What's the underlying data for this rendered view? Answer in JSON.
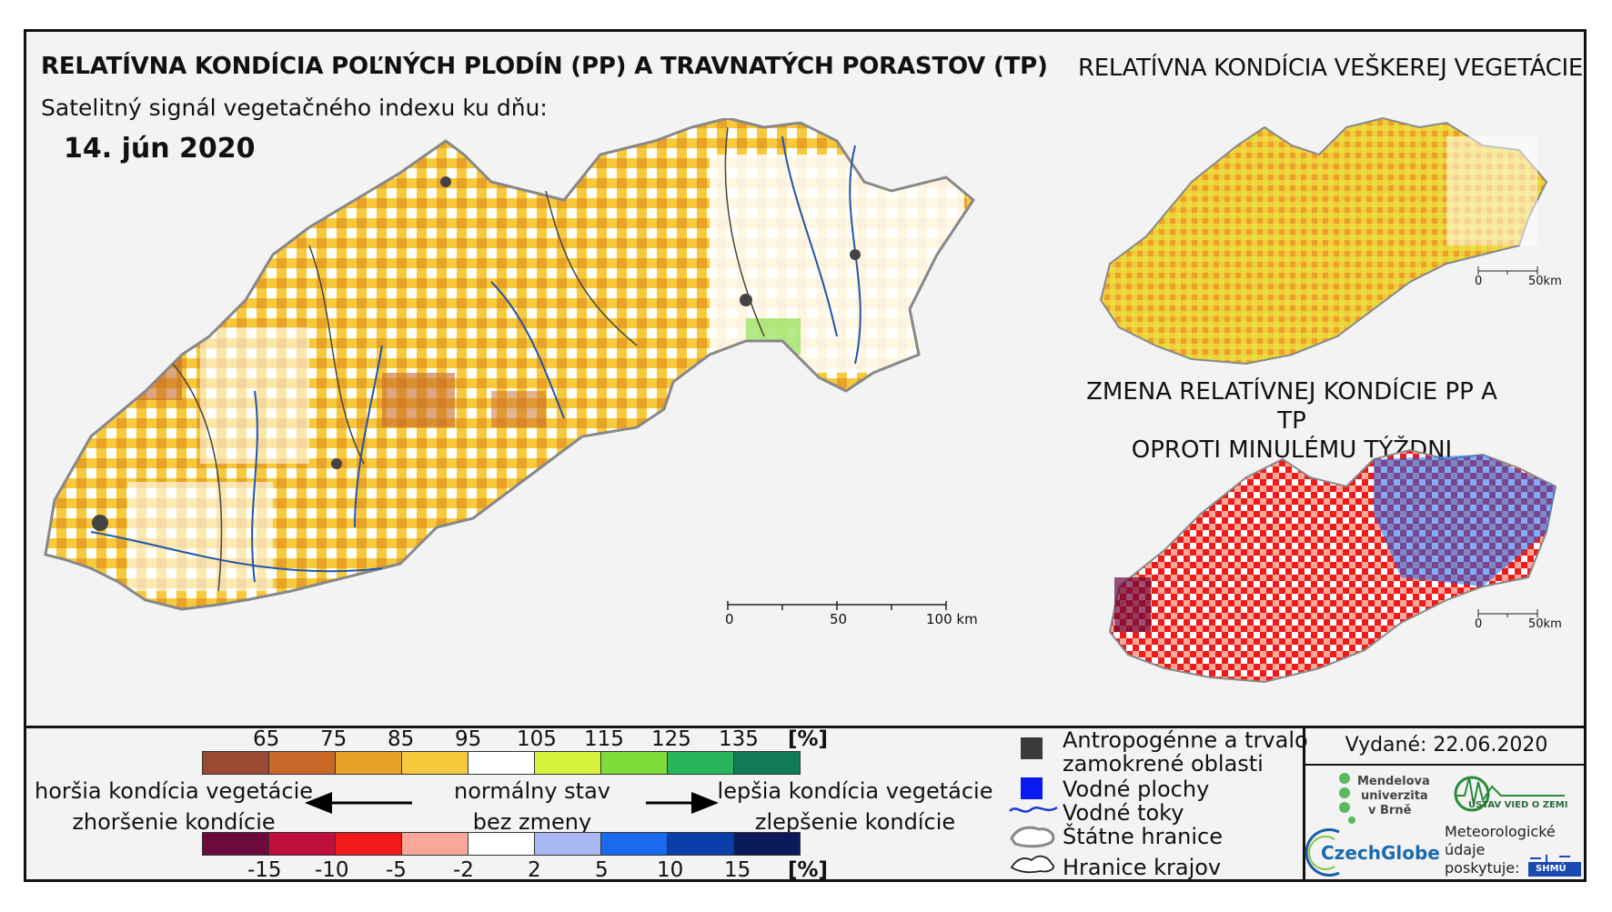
{
  "titles": {
    "main": "RELATÍVNA KONDÍCIA POĽNÝCH PLODÍN (PP) A TRAVNATÝCH PORASTOV (TP)",
    "subtitle": "Satelitný signál vegetačného indexu ku dňu:",
    "date": "14. jún 2020",
    "right_top": "RELATÍVNA KONDÍCIA VEŠKEREJ VEGETÁCIE",
    "right_change_line1": "ZMENA RELATÍVNEJ KONDÍCIE PP A TP",
    "right_change_line2": "OPROTI MINULÉMU TÝŽDNI"
  },
  "scale_bars": {
    "main": {
      "labels": [
        "0",
        "50",
        "100 km"
      ]
    },
    "small_top": {
      "labels": [
        "0",
        "50km"
      ]
    },
    "small_bottom": {
      "labels": [
        "0",
        "50km"
      ]
    }
  },
  "legend": {
    "condition_ticks": [
      "65",
      "75",
      "85",
      "95",
      "105",
      "115",
      "125",
      "135"
    ],
    "condition_unit": "[%]",
    "condition_colors": [
      "#9a4a33",
      "#c8692a",
      "#e8a228",
      "#f6ca3c",
      "#ffffff",
      "#d6f23c",
      "#7fdc3a",
      "#27b55a",
      "#117a56"
    ],
    "change_ticks": [
      "-15",
      "-10",
      "-5",
      "-2",
      "2",
      "5",
      "10",
      "15"
    ],
    "change_unit": "[%]",
    "change_colors": [
      "#6c0a3c",
      "#c00f3c",
      "#f01a1a",
      "#f8a898",
      "#ffffff",
      "#a8b8f2",
      "#1a6af0",
      "#0a3ea8",
      "#0a1a5a"
    ],
    "worse_line1": "horšia kondícia vegetácie",
    "worse_line2": "zhoršenie kondície",
    "normal_line1": "normálny stav",
    "normal_line2": "bez zmeny",
    "better_line1": "lepšia kondícia vegetácie",
    "better_line2": "zlepšenie kondície"
  },
  "map_key": {
    "anthropogenic_line1": "Antropogénne a trvalo",
    "anthropogenic_line2": "zamokrené oblasti",
    "water_areas": "Vodné plochy",
    "water_courses": "Vodné toky",
    "state_border": "Štátne hranice",
    "region_border": "Hranice krajov"
  },
  "issued": "Vydané: 22.06.2020",
  "logos": {
    "mendel_line1": "Mendelova",
    "mendel_line2": "univerzita",
    "mendel_line3": "v Brně",
    "ustav": "ÚSTAV VIED O ZEMI",
    "czechglobe": "CzechGlobe",
    "meteo_line1": "Meteorologické",
    "meteo_line2": "údaje",
    "meteo_line3": "poskytuje:",
    "shmu": "SHMÚ"
  }
}
